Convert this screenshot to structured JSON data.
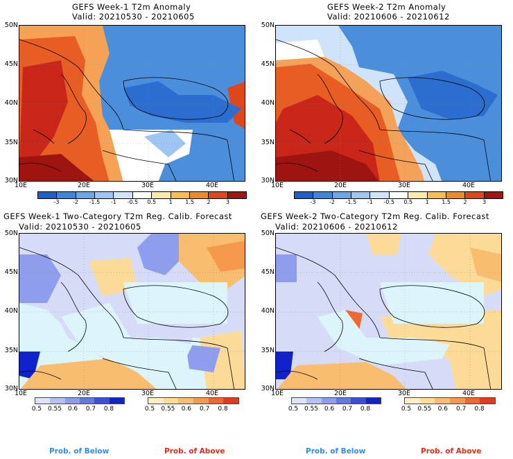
{
  "panels": [
    {
      "title_line1": "GEFS Week-1 T2m Anomaly",
      "title_line2": "Valid: 20210530 - 20210605"
    },
    {
      "title_line1": "GEFS Week-2 T2m Anomaly",
      "title_line2": "Valid: 20210606 - 20210612"
    },
    {
      "title_line1": "GEFS Week-1 Two-Category T2m Reg. Calib. Forecast",
      "title_line2": "Valid: 20210530 - 20210605"
    },
    {
      "title_line1": "GEFS Week-2 Two-Category T2m Reg. Calib. Forecast",
      "title_line2": "Valid: 20210606 - 20210612"
    }
  ],
  "axes": {
    "lat_labels": [
      "50N",
      "45N",
      "40N",
      "35N",
      "30N"
    ],
    "lon_labels": [
      "10E",
      "20E",
      "30E",
      "40E"
    ]
  },
  "anomaly_colorbar": {
    "ticks": [
      "-3",
      "-2",
      "-1.5",
      "-1",
      "-0.5",
      "0.5",
      "1",
      "1.5",
      "2",
      "3"
    ],
    "colors": [
      "#1f5fc9",
      "#3c86dc",
      "#6aa6eb",
      "#9ec6f4",
      "#cfe4fa",
      "#ffffff",
      "#fde9a6",
      "#f8bd4d",
      "#ef8a2b",
      "#e0461b",
      "#a11612"
    ]
  },
  "prob_colorbar": {
    "below_ticks": [
      "0.5",
      "0.55",
      "0.6",
      "0.7",
      "0.8"
    ],
    "above_ticks": [
      "0.5",
      "0.55",
      "0.6",
      "0.7",
      "0.8"
    ],
    "below_colors": [
      "#dde3fb",
      "#b5c0f4",
      "#8f9ded",
      "#6676e4",
      "#3a4ed9",
      "#1022c9"
    ],
    "above_colors": [
      "#fdefc6",
      "#fcdb98",
      "#f9bd70",
      "#f59a4d",
      "#f0682e",
      "#e8391b"
    ]
  },
  "legend": {
    "below_label": "Prob. of Below",
    "above_label": "Prob. of Above",
    "below_color": "#2b8ee8",
    "above_color": "#e32a12"
  },
  "colors": {
    "sea_prob": "#dcf5fb",
    "coast": "#000000"
  }
}
